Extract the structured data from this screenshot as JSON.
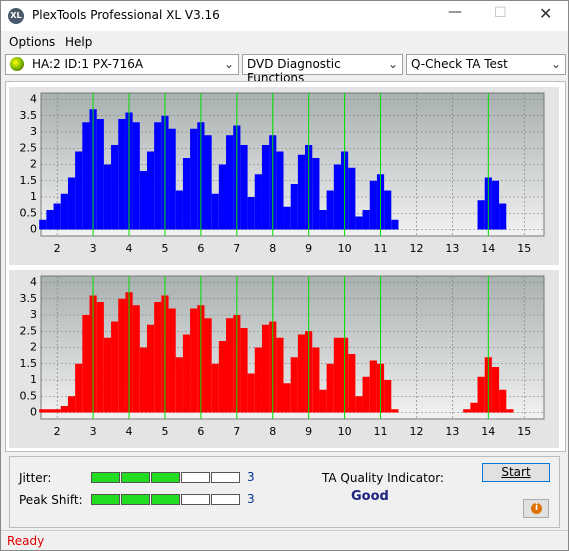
{
  "window": {
    "logo": "XL",
    "title": "PlexTools Professional XL V3.16"
  },
  "menu": [
    "Options",
    "Help"
  ],
  "toolbar": {
    "drive": "HA:2 ID:1  PX-716A",
    "function": "DVD Diagnostic Functions",
    "test": "Q-Check TA Test"
  },
  "chart_data": [
    {
      "type": "bar",
      "color": "#0000ff",
      "x": [
        1.6,
        1.8,
        2.0,
        2.2,
        2.4,
        2.6,
        2.8,
        3.0,
        3.2,
        3.4,
        3.6,
        3.8,
        4.0,
        4.2,
        4.4,
        4.6,
        4.8,
        5.0,
        5.2,
        5.4,
        5.6,
        5.8,
        6.0,
        6.2,
        6.4,
        6.6,
        6.8,
        7.0,
        7.2,
        7.4,
        7.6,
        7.8,
        8.0,
        8.2,
        8.4,
        8.6,
        8.8,
        9.0,
        9.2,
        9.4,
        9.6,
        9.8,
        10.0,
        10.2,
        10.4,
        10.6,
        10.8,
        11.0,
        11.2,
        11.4,
        11.6,
        11.8,
        12.0,
        12.2,
        12.4,
        12.6,
        12.8,
        13.0,
        13.2,
        13.4,
        13.6,
        13.8,
        14.0,
        14.2,
        14.4,
        14.6,
        14.8
      ],
      "values": [
        0.3,
        0.6,
        0.8,
        1.1,
        1.6,
        2.4,
        3.3,
        3.7,
        3.4,
        2.0,
        2.6,
        3.4,
        3.6,
        3.3,
        1.8,
        2.4,
        3.3,
        3.5,
        3.1,
        1.2,
        2.2,
        3.1,
        3.3,
        2.9,
        1.1,
        2.0,
        2.9,
        3.2,
        2.6,
        1.0,
        1.7,
        2.6,
        2.9,
        2.4,
        0.7,
        1.4,
        2.3,
        2.6,
        2.2,
        0.6,
        1.2,
        2.0,
        2.4,
        1.9,
        0.4,
        0.6,
        1.5,
        1.7,
        1.2,
        0.3,
        0,
        0,
        0,
        0,
        0,
        0,
        0,
        0,
        0,
        0,
        0,
        0.9,
        1.6,
        1.5,
        0.8,
        0,
        0
      ],
      "xlim": [
        1.55,
        15.55
      ],
      "ylim": [
        -0.2,
        4.2
      ],
      "xticks": [
        2,
        3,
        4,
        5,
        6,
        7,
        8,
        9,
        10,
        11,
        12,
        13,
        14,
        15
      ],
      "yticks": [
        0,
        0.5,
        1,
        1.5,
        2,
        2.5,
        3,
        3.5,
        4
      ],
      "grid": true,
      "markers": [
        3,
        4,
        5,
        6,
        7,
        8,
        9,
        10,
        11,
        14
      ],
      "marker_color": "#00e000"
    },
    {
      "type": "bar",
      "color": "#ff0000",
      "x": [
        1.6,
        1.8,
        2.0,
        2.2,
        2.4,
        2.6,
        2.8,
        3.0,
        3.2,
        3.4,
        3.6,
        3.8,
        4.0,
        4.2,
        4.4,
        4.6,
        4.8,
        5.0,
        5.2,
        5.4,
        5.6,
        5.8,
        6.0,
        6.2,
        6.4,
        6.6,
        6.8,
        7.0,
        7.2,
        7.4,
        7.6,
        7.8,
        8.0,
        8.2,
        8.4,
        8.6,
        8.8,
        9.0,
        9.2,
        9.4,
        9.6,
        9.8,
        10.0,
        10.2,
        10.4,
        10.6,
        10.8,
        11.0,
        11.2,
        11.4,
        11.6,
        11.8,
        12.0,
        12.2,
        12.4,
        12.6,
        12.8,
        13.0,
        13.2,
        13.4,
        13.6,
        13.8,
        14.0,
        14.2,
        14.4,
        14.6,
        14.8
      ],
      "values": [
        0.1,
        0.1,
        0.1,
        0.2,
        0.5,
        1.5,
        3.0,
        3.6,
        3.4,
        2.3,
        2.8,
        3.5,
        3.7,
        3.3,
        2.0,
        2.7,
        3.4,
        3.6,
        3.2,
        1.7,
        2.4,
        3.2,
        3.3,
        2.9,
        1.5,
        2.2,
        2.9,
        3.0,
        2.6,
        1.2,
        2.0,
        2.7,
        2.8,
        2.3,
        0.9,
        1.7,
        2.4,
        2.5,
        2.0,
        0.7,
        1.5,
        2.3,
        2.3,
        1.8,
        0.5,
        1.1,
        1.6,
        1.5,
        1.0,
        0.1,
        0,
        0,
        0,
        0,
        0,
        0,
        0,
        0,
        0,
        0.1,
        0.3,
        1.1,
        1.7,
        1.4,
        0.7,
        0.1,
        0
      ],
      "xlim": [
        1.55,
        15.55
      ],
      "ylim": [
        -0.2,
        4.2
      ],
      "xticks": [
        2,
        3,
        4,
        5,
        6,
        7,
        8,
        9,
        10,
        11,
        12,
        13,
        14,
        15
      ],
      "yticks": [
        0,
        0.5,
        1,
        1.5,
        2,
        2.5,
        3,
        3.5,
        4
      ],
      "grid": true,
      "markers": [
        3,
        4,
        5,
        6,
        7,
        8,
        9,
        10,
        11,
        14
      ],
      "marker_color": "#00e000"
    }
  ],
  "results": {
    "jitter_label": "Jitter:",
    "jitter": 3,
    "peak_shift_label": "Peak Shift:",
    "peak_shift": 3,
    "quality_label": "TA Quality Indicator:",
    "quality": "Good",
    "start": "Start"
  },
  "status": "Ready"
}
